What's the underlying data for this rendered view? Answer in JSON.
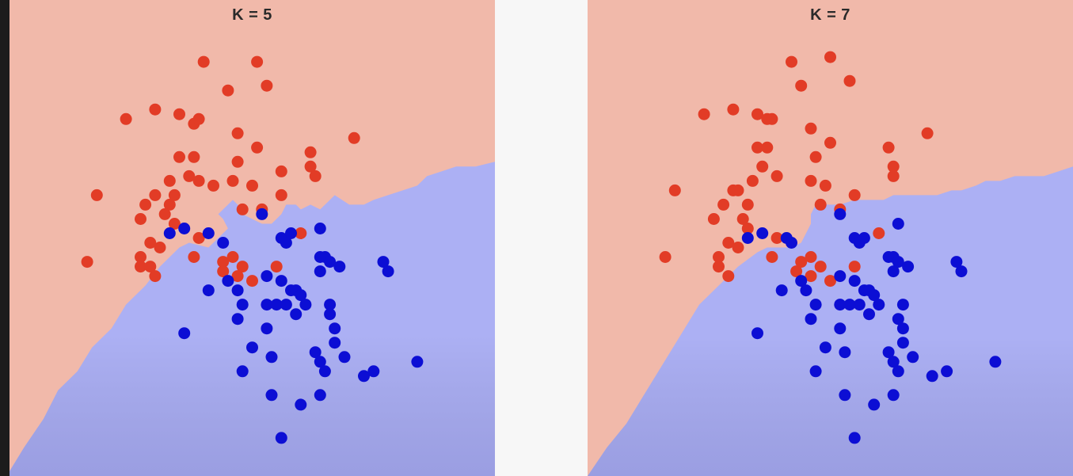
{
  "colors": {
    "red_region": "#f1b9aa",
    "blue_region": "#acb0f4",
    "red_point": "#e23c26",
    "blue_point": "#0c0ed4"
  },
  "chart_data": [
    {
      "type": "scatter",
      "title": "K = 5",
      "xlabel": "",
      "ylabel": "",
      "grid": false,
      "xlim": [
        0,
        100
      ],
      "ylim": [
        0,
        100
      ],
      "boundary": [
        [
          0,
          1
        ],
        [
          3,
          6
        ],
        [
          7,
          12
        ],
        [
          10,
          18
        ],
        [
          14,
          22
        ],
        [
          17,
          27
        ],
        [
          21,
          31
        ],
        [
          24,
          36
        ],
        [
          28,
          40
        ],
        [
          31,
          44
        ],
        [
          35,
          48
        ],
        [
          37,
          49
        ],
        [
          41,
          48
        ],
        [
          43,
          50
        ],
        [
          44,
          51
        ],
        [
          45,
          52
        ],
        [
          44,
          54
        ],
        [
          43,
          55
        ],
        [
          44,
          56
        ],
        [
          46,
          58
        ],
        [
          47,
          57
        ],
        [
          48,
          55
        ],
        [
          50,
          54
        ],
        [
          52,
          53
        ],
        [
          54,
          53
        ],
        [
          56,
          55
        ],
        [
          57,
          57
        ],
        [
          59,
          57
        ],
        [
          60,
          56
        ],
        [
          62,
          57
        ],
        [
          64,
          56
        ],
        [
          66,
          58
        ],
        [
          67,
          59
        ],
        [
          70,
          57
        ],
        [
          73,
          57
        ],
        [
          75,
          58
        ],
        [
          78,
          59
        ],
        [
          81,
          60
        ],
        [
          84,
          61
        ],
        [
          86,
          63
        ],
        [
          89,
          64
        ],
        [
          92,
          65
        ],
        [
          96,
          65
        ],
        [
          100,
          66
        ]
      ],
      "series": [
        {
          "class": "red",
          "points": [
            [
              40,
              87
            ],
            [
              51,
              87
            ],
            [
              45,
              81
            ],
            [
              53,
              82
            ],
            [
              24,
              75
            ],
            [
              30,
              77
            ],
            [
              35,
              76
            ],
            [
              38,
              74
            ],
            [
              39,
              75
            ],
            [
              47,
              72
            ],
            [
              35,
              67
            ],
            [
              38,
              67
            ],
            [
              51,
              69
            ],
            [
              47,
              66
            ],
            [
              42,
              61
            ],
            [
              56,
              64
            ],
            [
              62,
              68
            ],
            [
              62,
              65
            ],
            [
              63,
              63
            ],
            [
              71,
              71
            ],
            [
              33,
              62
            ],
            [
              37,
              63
            ],
            [
              39,
              62
            ],
            [
              30,
              59
            ],
            [
              34,
              59
            ],
            [
              46,
              62
            ],
            [
              50,
              61
            ],
            [
              56,
              59
            ],
            [
              18,
              59
            ],
            [
              28,
              57
            ],
            [
              33,
              57
            ],
            [
              27,
              54
            ],
            [
              32,
              55
            ],
            [
              34,
              53
            ],
            [
              48,
              56
            ],
            [
              52,
              56
            ],
            [
              60,
              51
            ],
            [
              29,
              49
            ],
            [
              27,
              46
            ],
            [
              31,
              48
            ],
            [
              16,
              45
            ],
            [
              27,
              44
            ],
            [
              30,
              42
            ],
            [
              29,
              44
            ],
            [
              38,
              46
            ],
            [
              39,
              50
            ],
            [
              44,
              43
            ],
            [
              44,
              45
            ],
            [
              46,
              46
            ],
            [
              48,
              44
            ],
            [
              47,
              42
            ],
            [
              50,
              41
            ],
            [
              55,
              44
            ]
          ]
        },
        {
          "class": "blue",
          "points": [
            [
              52,
              55
            ],
            [
              56,
              50
            ],
            [
              57,
              49
            ],
            [
              58,
              51
            ],
            [
              64,
              52
            ],
            [
              33,
              51
            ],
            [
              36,
              52
            ],
            [
              41,
              51
            ],
            [
              44,
              49
            ],
            [
              64,
              46
            ],
            [
              65,
              46
            ],
            [
              66,
              45
            ],
            [
              68,
              44
            ],
            [
              64,
              43
            ],
            [
              77,
              45
            ],
            [
              78,
              43
            ],
            [
              53,
              42
            ],
            [
              56,
              41
            ],
            [
              58,
              39
            ],
            [
              59,
              39
            ],
            [
              45,
              41
            ],
            [
              47,
              39
            ],
            [
              60,
              38
            ],
            [
              61,
              36
            ],
            [
              66,
              36
            ],
            [
              41,
              39
            ],
            [
              48,
              36
            ],
            [
              53,
              36
            ],
            [
              55,
              36
            ],
            [
              57,
              36
            ],
            [
              59,
              34
            ],
            [
              66,
              34
            ],
            [
              47,
              33
            ],
            [
              67,
              31
            ],
            [
              53,
              31
            ],
            [
              67,
              28
            ],
            [
              36,
              30
            ],
            [
              50,
              27
            ],
            [
              69,
              25
            ],
            [
              54,
              25
            ],
            [
              63,
              26
            ],
            [
              64,
              24
            ],
            [
              48,
              22
            ],
            [
              65,
              22
            ],
            [
              73,
              21
            ],
            [
              75,
              22
            ],
            [
              84,
              24
            ],
            [
              54,
              17
            ],
            [
              64,
              17
            ],
            [
              60,
              15
            ],
            [
              56,
              8
            ]
          ]
        }
      ]
    },
    {
      "type": "scatter",
      "title": "K = 7",
      "xlabel": "",
      "ylabel": "",
      "grid": false,
      "xlim": [
        0,
        100
      ],
      "ylim": [
        0,
        100
      ],
      "boundary": [
        [
          0,
          0
        ],
        [
          4,
          6
        ],
        [
          8,
          11
        ],
        [
          11,
          16
        ],
        [
          14,
          21
        ],
        [
          17,
          26
        ],
        [
          20,
          31
        ],
        [
          23,
          36
        ],
        [
          27,
          40
        ],
        [
          31,
          44
        ],
        [
          35,
          47
        ],
        [
          37,
          48
        ],
        [
          39,
          48
        ],
        [
          42,
          48
        ],
        [
          44,
          49
        ],
        [
          45,
          51
        ],
        [
          46,
          53
        ],
        [
          46,
          55
        ],
        [
          47,
          57
        ],
        [
          48,
          57
        ],
        [
          50,
          57
        ],
        [
          52,
          57
        ],
        [
          55,
          58
        ],
        [
          58,
          58
        ],
        [
          61,
          58
        ],
        [
          63,
          59
        ],
        [
          65,
          59
        ],
        [
          67,
          59
        ],
        [
          70,
          59
        ],
        [
          72,
          59
        ],
        [
          75,
          60
        ],
        [
          77,
          60
        ],
        [
          80,
          61
        ],
        [
          82,
          62
        ],
        [
          85,
          62
        ],
        [
          88,
          63
        ],
        [
          91,
          63
        ],
        [
          94,
          63
        ],
        [
          97,
          64
        ],
        [
          100,
          65
        ]
      ],
      "series": [
        {
          "class": "red",
          "points": [
            [
              50,
              88
            ],
            [
              42,
              87
            ],
            [
              54,
              83
            ],
            [
              44,
              82
            ],
            [
              24,
              76
            ],
            [
              30,
              77
            ],
            [
              35,
              76
            ],
            [
              37,
              75
            ],
            [
              38,
              75
            ],
            [
              46,
              73
            ],
            [
              35,
              69
            ],
            [
              37,
              69
            ],
            [
              50,
              70
            ],
            [
              47,
              67
            ],
            [
              70,
              72
            ],
            [
              62,
              69
            ],
            [
              63,
              65
            ],
            [
              63,
              63
            ],
            [
              36,
              65
            ],
            [
              39,
              63
            ],
            [
              34,
              62
            ],
            [
              30,
              60
            ],
            [
              31,
              60
            ],
            [
              46,
              62
            ],
            [
              49,
              61
            ],
            [
              55,
              59
            ],
            [
              18,
              60
            ],
            [
              28,
              57
            ],
            [
              33,
              57
            ],
            [
              26,
              54
            ],
            [
              32,
              54
            ],
            [
              33,
              52
            ],
            [
              48,
              57
            ],
            [
              52,
              56
            ],
            [
              60,
              51
            ],
            [
              29,
              49
            ],
            [
              27,
              46
            ],
            [
              31,
              48
            ],
            [
              16,
              46
            ],
            [
              27,
              44
            ],
            [
              29,
              42
            ],
            [
              38,
              46
            ],
            [
              39,
              50
            ],
            [
              43,
              43
            ],
            [
              44,
              45
            ],
            [
              46,
              46
            ],
            [
              48,
              44
            ],
            [
              46,
              42
            ],
            [
              50,
              41
            ],
            [
              55,
              44
            ]
          ]
        },
        {
          "class": "blue",
          "points": [
            [
              52,
              55
            ],
            [
              55,
              50
            ],
            [
              56,
              49
            ],
            [
              57,
              50
            ],
            [
              64,
              53
            ],
            [
              33,
              50
            ],
            [
              36,
              51
            ],
            [
              41,
              50
            ],
            [
              42,
              49
            ],
            [
              62,
              46
            ],
            [
              63,
              46
            ],
            [
              64,
              45
            ],
            [
              66,
              44
            ],
            [
              63,
              43
            ],
            [
              76,
              45
            ],
            [
              77,
              43
            ],
            [
              52,
              42
            ],
            [
              55,
              41
            ],
            [
              57,
              39
            ],
            [
              58,
              39
            ],
            [
              44,
              41
            ],
            [
              45,
              39
            ],
            [
              59,
              38
            ],
            [
              60,
              36
            ],
            [
              65,
              36
            ],
            [
              40,
              39
            ],
            [
              47,
              36
            ],
            [
              52,
              36
            ],
            [
              54,
              36
            ],
            [
              56,
              36
            ],
            [
              58,
              34
            ],
            [
              64,
              33
            ],
            [
              46,
              33
            ],
            [
              65,
              31
            ],
            [
              52,
              31
            ],
            [
              65,
              28
            ],
            [
              35,
              30
            ],
            [
              49,
              27
            ],
            [
              67,
              25
            ],
            [
              53,
              26
            ],
            [
              62,
              26
            ],
            [
              63,
              24
            ],
            [
              47,
              22
            ],
            [
              64,
              22
            ],
            [
              71,
              21
            ],
            [
              74,
              22
            ],
            [
              84,
              24
            ],
            [
              53,
              17
            ],
            [
              63,
              17
            ],
            [
              59,
              15
            ],
            [
              55,
              8
            ]
          ]
        }
      ]
    }
  ]
}
